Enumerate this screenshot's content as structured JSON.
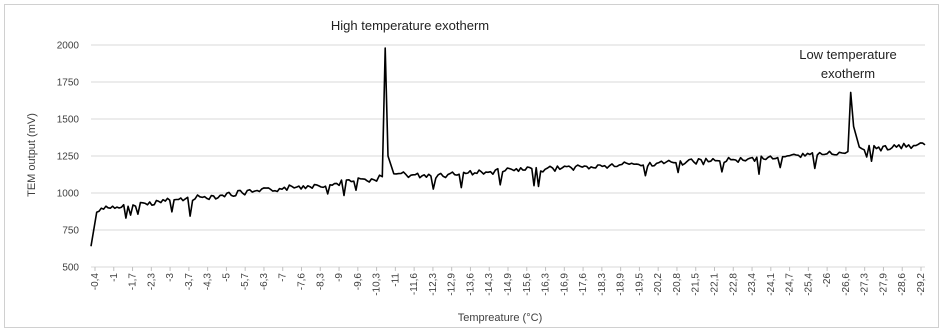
{
  "chart_data": {
    "type": "line",
    "title": "",
    "xlabel": "Tempreature (°C)",
    "ylabel": "TEM output (mV)",
    "ylim": [
      500,
      2000
    ],
    "yticks": [
      500,
      750,
      1000,
      1250,
      1500,
      1750,
      2000
    ],
    "grid": "horizontal",
    "line_color": "#000000",
    "x_tick_labels": [
      "-0,4",
      "-1",
      "-1,7",
      "-2,3",
      "-3",
      "-3,7",
      "-4,3",
      "-5",
      "-5,7",
      "-6,3",
      "-7",
      "-7,6",
      "-8,3",
      "-9",
      "-9,6",
      "-10,3",
      "-11",
      "-11,6",
      "-12,3",
      "-12,9",
      "-13,6",
      "-14,3",
      "-14,9",
      "-15,6",
      "-16,3",
      "-16,9",
      "-17,6",
      "-18,3",
      "-18,9",
      "-19,5",
      "-20,2",
      "-20,8",
      "-21,5",
      "-22,1",
      "-22,8",
      "-23,4",
      "-24,1",
      "-24,7",
      "-25,4",
      "-26",
      "-26,6",
      "-27,3",
      "-27,9",
      "-28,6",
      "-29,2"
    ],
    "series": [
      {
        "x": [
          -0.4,
          -0.6,
          -1,
          -1.7,
          -2.3,
          -3,
          -3.7,
          -4.3,
          -5,
          -5.7,
          -6.3,
          -7,
          -7.6,
          -8.3,
          -9,
          -9.6,
          -10.3,
          -10.6,
          -10.7,
          -10.8,
          -11,
          -11.6,
          -12.3,
          -12.9,
          -13.6,
          -14.3,
          -14.9,
          -15.6,
          -16.3,
          -16.9,
          -17.6,
          -18.3,
          -18.9,
          -19.5,
          -20.2,
          -20.8,
          -21.5,
          -22.1,
          -22.8,
          -23.4,
          -24.1,
          -24.7,
          -25.4,
          -26,
          -26.6,
          -26.9,
          -27.0,
          -27.1,
          -27.3,
          -27.9,
          -28.6,
          -29.2,
          -29.6
        ],
        "y": [
          640,
          870,
          900,
          910,
          930,
          945,
          960,
          970,
          985,
          1000,
          1010,
          1030,
          1040,
          1055,
          1065,
          1080,
          1090,
          1110,
          1980,
          1250,
          1130,
          1120,
          1115,
          1125,
          1135,
          1140,
          1150,
          1155,
          1160,
          1170,
          1175,
          1180,
          1190,
          1195,
          1200,
          1205,
          1210,
          1215,
          1225,
          1230,
          1240,
          1245,
          1250,
          1260,
          1275,
          1280,
          1680,
          1450,
          1310,
          1300,
          1310,
          1320,
          1325
        ]
      }
    ],
    "annotations": [
      {
        "text": "High temperature exotherm",
        "x": -10.8,
        "y": 1980
      },
      {
        "text": "Low temperature exotherm",
        "x": -27.0,
        "y": 1680
      }
    ]
  }
}
